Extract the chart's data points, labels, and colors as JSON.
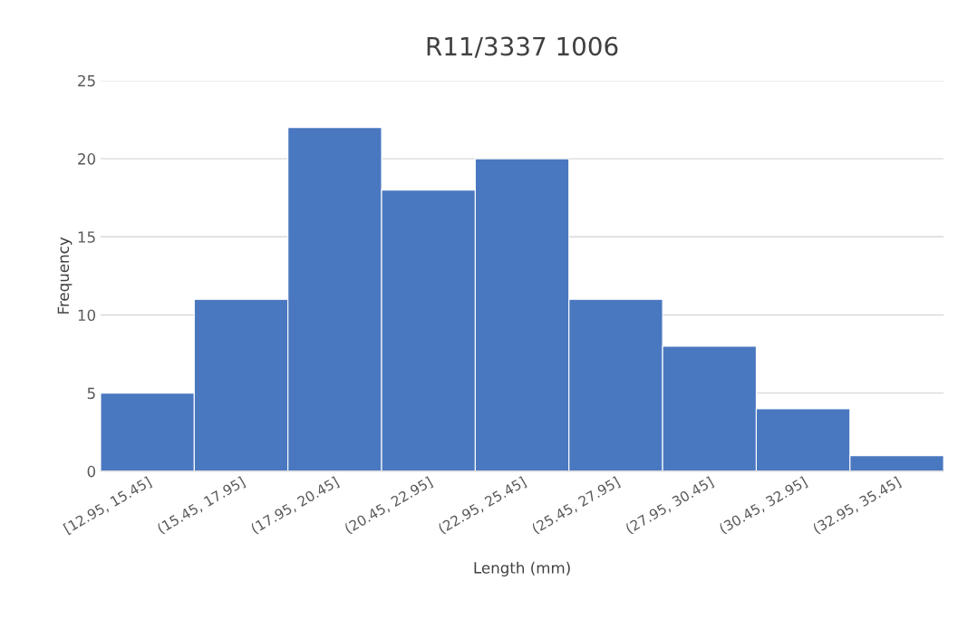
{
  "chart_data": {
    "type": "bar",
    "title": "R11/3337 1006",
    "xlabel": "Length (mm)",
    "ylabel": "Frequency",
    "categories": [
      "[12.95, 15.45]",
      "(15.45, 17.95]",
      "(17.95, 20.45]",
      "(20.45, 22.95]",
      "(22.95, 25.45]",
      "(25.45, 27.95]",
      "(27.95, 30.45]",
      "(30.45, 32.95]",
      "(32.95, 35.45]"
    ],
    "values": [
      5,
      11,
      22,
      18,
      20,
      11,
      8,
      4,
      1
    ],
    "color": "#4a78c0",
    "ylim": [
      0,
      25
    ],
    "yticks": [
      0,
      5,
      10,
      15,
      20,
      25
    ],
    "grid": "y",
    "legend": false
  }
}
